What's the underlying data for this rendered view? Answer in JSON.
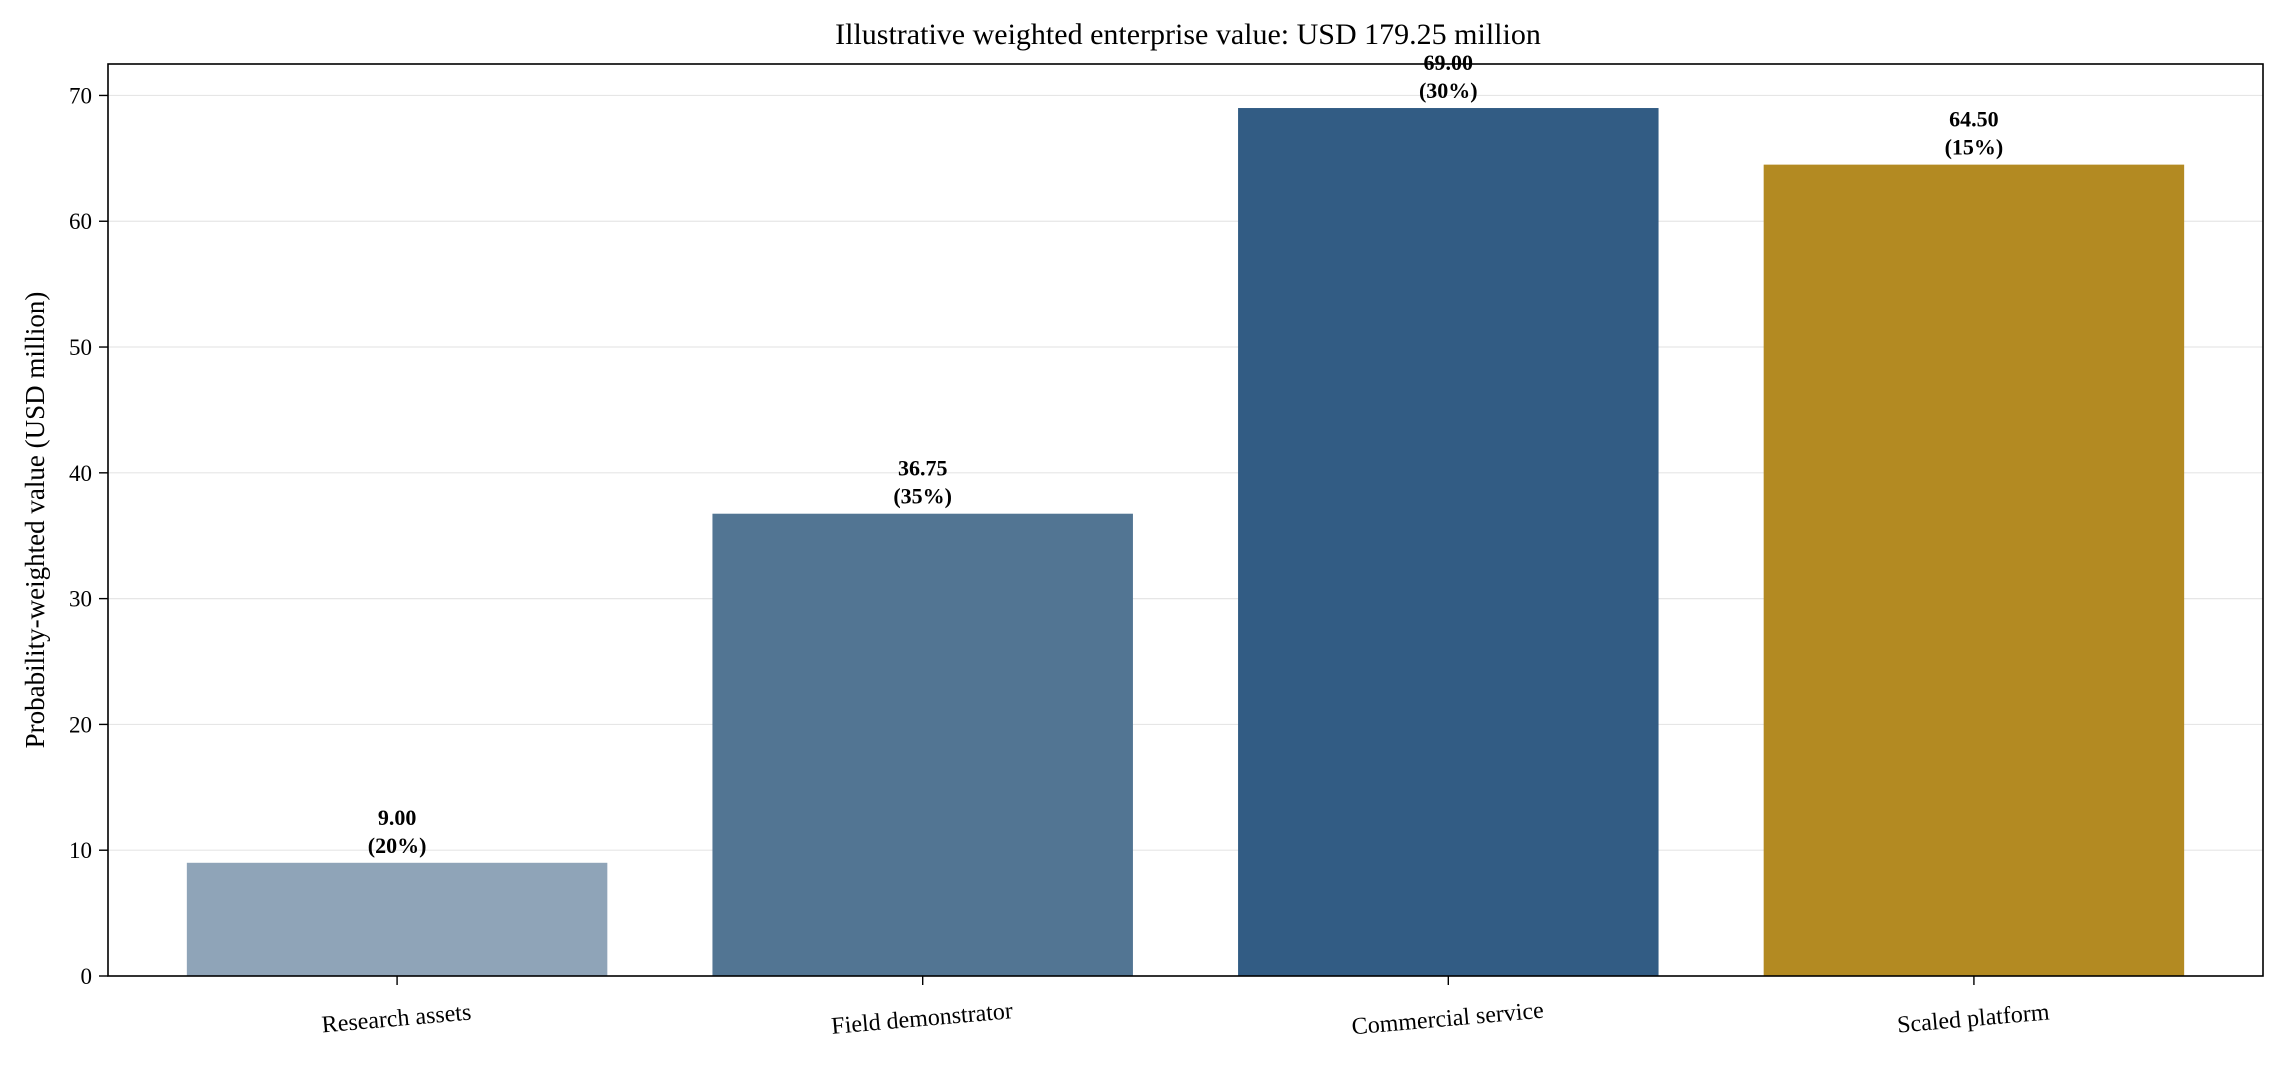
{
  "chart_data": {
    "type": "bar",
    "title": "Illustrative weighted enterprise value: USD 179.25 million",
    "xlabel": "",
    "ylabel": "Probability-weighted value (USD million)",
    "ylim": [
      0,
      72.5
    ],
    "yticks": [
      0,
      10,
      20,
      30,
      40,
      50,
      60,
      70
    ],
    "grid": "y",
    "categories": [
      "Research assets",
      "Field demonstrator",
      "Commercial service",
      "Scaled platform"
    ],
    "values": [
      9.0,
      36.75,
      69.0,
      64.5
    ],
    "value_labels": [
      "9.00",
      "36.75",
      "69.00",
      "64.50"
    ],
    "weights": [
      "(20%)",
      "(35%)",
      "(30%)",
      "(15%)"
    ],
    "colors": [
      "#8fa4b8",
      "#527593",
      "#325c84",
      "#b38a22"
    ]
  }
}
